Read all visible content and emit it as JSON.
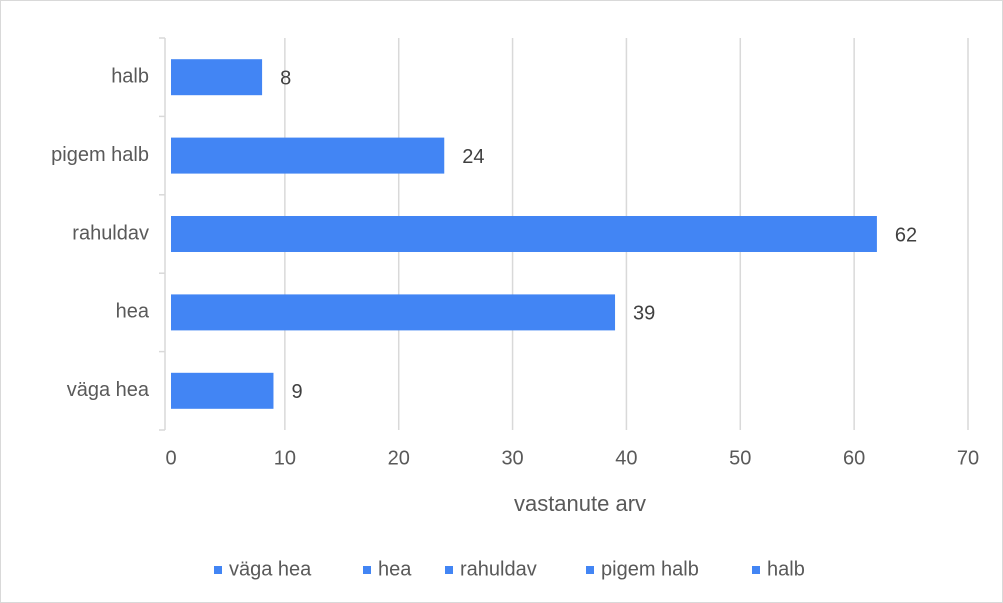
{
  "chart_data": {
    "type": "barh",
    "categories": [
      "väga hea",
      "hea",
      "rahuldav",
      "pigem halb",
      "halb"
    ],
    "values": [
      9,
      39,
      62,
      24,
      8
    ],
    "color": "#4285f4",
    "xlabel": "vastanute arv",
    "xlim": [
      0,
      70
    ],
    "xticks": [
      0,
      10,
      20,
      30,
      40,
      50,
      60,
      70
    ],
    "grid": true,
    "legend": "bottom"
  }
}
